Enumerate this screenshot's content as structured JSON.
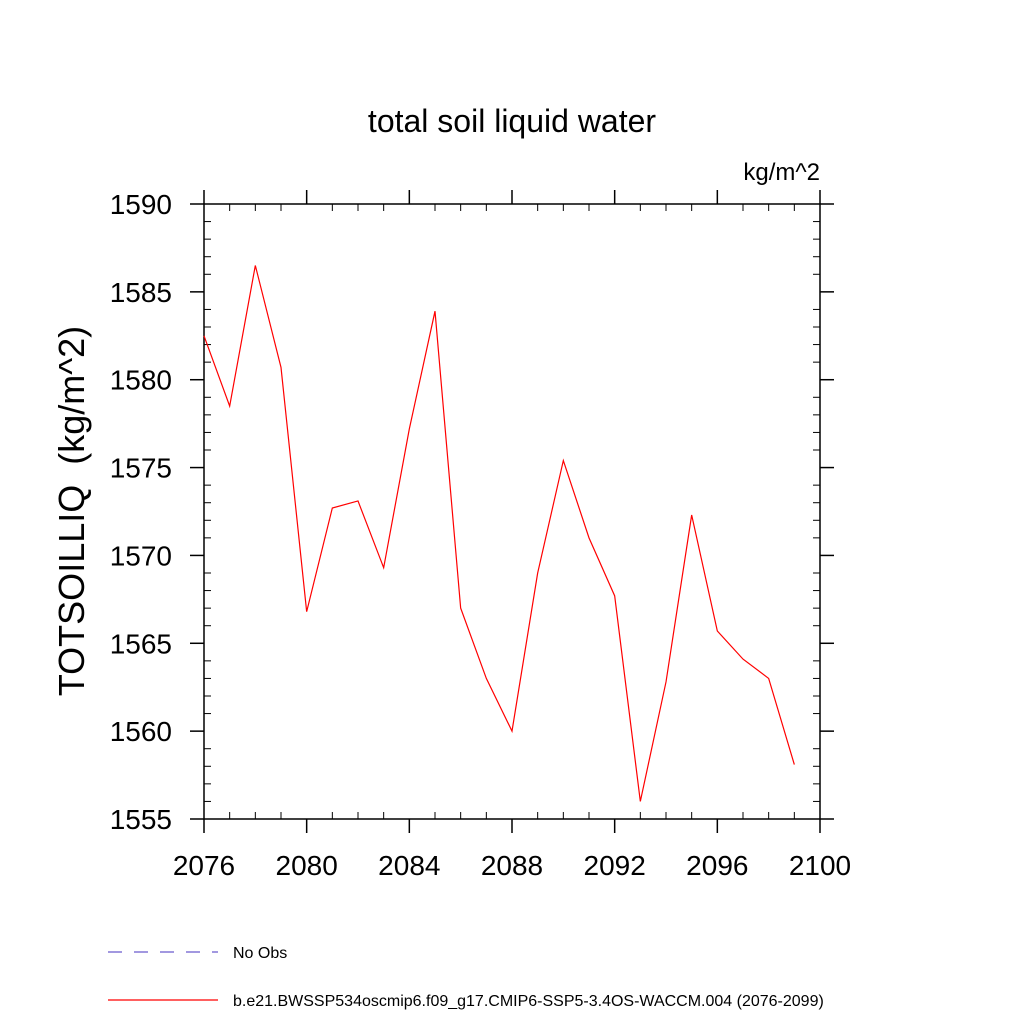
{
  "chart_data": {
    "type": "line",
    "title": "total soil liquid water",
    "units_label": "kg/m^2",
    "ylabel": "TOTSOILLIQ  (kg/m^2)",
    "xlabel": "",
    "xlim": [
      2076,
      2100
    ],
    "ylim": [
      1555,
      1590
    ],
    "x_ticks": [
      2076,
      2080,
      2084,
      2088,
      2092,
      2096,
      2100
    ],
    "y_ticks": [
      1555,
      1560,
      1565,
      1570,
      1575,
      1580,
      1585,
      1590
    ],
    "x_minor_step": 1,
    "y_minor_step": 1,
    "grid": false,
    "series": [
      {
        "name": "b.e21.BWSSP534oscmip6.f09_g17.CMIP6-SSP5-3.4OS-WACCM.004 (2076-2099)",
        "color": "#ff0000",
        "x": [
          2076,
          2077,
          2078,
          2079,
          2080,
          2081,
          2082,
          2083,
          2084,
          2085,
          2086,
          2087,
          2088,
          2089,
          2090,
          2091,
          2092,
          2093,
          2094,
          2095,
          2096,
          2097,
          2098,
          2099
        ],
        "values": [
          1582.5,
          1578.5,
          1586.5,
          1580.7,
          1566.8,
          1572.7,
          1573.1,
          1569.3,
          1577.2,
          1583.9,
          1567.0,
          1563.0,
          1560.0,
          1569.0,
          1575.4,
          1571.0,
          1567.7,
          1556.0,
          1562.8,
          1572.3,
          1565.7,
          1564.1,
          1563.0,
          1558.1
        ]
      }
    ],
    "legend": {
      "position": "bottom-left",
      "entries": [
        {
          "label": "No Obs",
          "color": "#6a5acd",
          "style": "dashed"
        },
        {
          "label": "b.e21.BWSSP534oscmip6.f09_g17.CMIP6-SSP5-3.4OS-WACCM.004 (2076-2099)",
          "color": "#ff0000",
          "style": "solid"
        }
      ]
    }
  }
}
